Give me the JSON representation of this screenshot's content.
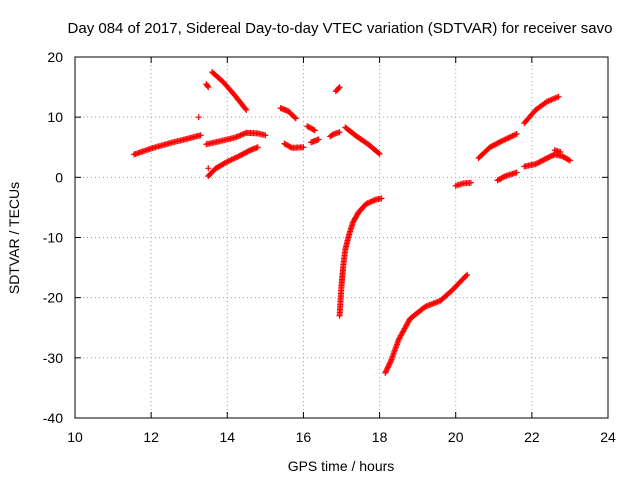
{
  "chart_data": {
    "type": "scatter",
    "title": "Day 084 of 2017, Sidereal Day-to-day VTEC variation (SDTVAR) for receiver savo",
    "xlabel": "GPS time / hours",
    "ylabel": "SDTVAR / TECUs",
    "xlim": [
      10,
      24
    ],
    "ylim": [
      -40,
      20
    ],
    "x_ticks": [
      "10",
      "12",
      "14",
      "16",
      "18",
      "20",
      "22",
      "24"
    ],
    "y_ticks": [
      "20",
      "10",
      "0",
      "-10",
      "-20",
      "-30",
      "-40"
    ],
    "grid": true,
    "marker": "plus",
    "color": "#ff0000",
    "segments": [
      {
        "x": [
          11.55,
          12.0,
          12.5,
          13.0,
          13.3
        ],
        "y": [
          3.8,
          4.8,
          5.7,
          6.5,
          7.0
        ]
      },
      {
        "x": [
          13.45,
          13.8,
          14.2,
          14.5,
          14.8,
          15.0
        ],
        "y": [
          5.5,
          6.0,
          6.6,
          7.4,
          7.3,
          7.0
        ]
      },
      {
        "x": [
          13.5,
          13.7,
          14.0,
          14.3,
          14.6,
          14.8
        ],
        "y": [
          0.2,
          1.5,
          2.6,
          3.5,
          4.5,
          5.0
        ]
      },
      {
        "x": [
          13.6,
          13.9,
          14.2,
          14.5
        ],
        "y": [
          17.5,
          15.8,
          13.6,
          11.2
        ]
      },
      {
        "x": [
          13.45,
          13.5
        ],
        "y": [
          15.5,
          15.0
        ]
      },
      {
        "x": [
          13.25
        ],
        "y": [
          10.0
        ]
      },
      {
        "x": [
          13.5
        ],
        "y": [
          1.5
        ]
      },
      {
        "x": [
          15.4,
          15.6,
          15.8
        ],
        "y": [
          11.5,
          11.0,
          9.8
        ]
      },
      {
        "x": [
          15.5,
          15.7,
          16.0
        ],
        "y": [
          5.6,
          4.9,
          5.0
        ]
      },
      {
        "x": [
          16.1,
          16.3
        ],
        "y": [
          8.5,
          7.8
        ]
      },
      {
        "x": [
          16.2,
          16.4
        ],
        "y": [
          5.8,
          6.3
        ]
      },
      {
        "x": [
          16.7,
          16.8,
          16.95
        ],
        "y": [
          6.8,
          7.2,
          7.5
        ]
      },
      {
        "x": [
          16.85,
          16.95
        ],
        "y": [
          14.3,
          15.0
        ]
      },
      {
        "x": [
          17.1,
          17.4,
          17.7,
          18.0
        ],
        "y": [
          8.3,
          6.8,
          5.5,
          3.9
        ]
      },
      {
        "x": [
          16.95,
          17.0,
          17.05,
          17.1,
          17.2,
          17.3,
          17.45,
          17.65,
          17.9,
          18.05
        ],
        "y": [
          -23.0,
          -18.0,
          -14.5,
          -12.0,
          -9.5,
          -7.5,
          -5.8,
          -4.4,
          -3.7,
          -3.5
        ]
      },
      {
        "x": [
          18.15,
          18.3,
          18.5,
          18.8,
          19.2,
          19.6,
          19.9,
          20.3
        ],
        "y": [
          -32.5,
          -30.5,
          -27.0,
          -23.5,
          -21.5,
          -20.5,
          -18.8,
          -16.2
        ]
      },
      {
        "x": [
          20.0,
          20.2,
          20.4
        ],
        "y": [
          -1.4,
          -1.0,
          -0.9
        ]
      },
      {
        "x": [
          20.6,
          20.9,
          21.2,
          21.6
        ],
        "y": [
          3.2,
          5.0,
          6.0,
          7.2
        ]
      },
      {
        "x": [
          21.1,
          21.3,
          21.6
        ],
        "y": [
          -0.5,
          0.2,
          0.8
        ]
      },
      {
        "x": [
          21.8,
          22.1,
          22.4,
          22.7
        ],
        "y": [
          9.0,
          11.2,
          12.6,
          13.4
        ]
      },
      {
        "x": [
          21.8,
          22.1,
          22.4,
          22.6,
          22.8,
          23.0
        ],
        "y": [
          1.8,
          2.2,
          3.2,
          3.8,
          3.5,
          2.8
        ]
      },
      {
        "x": [
          22.6,
          22.75
        ],
        "y": [
          4.5,
          4.2
        ]
      }
    ]
  }
}
